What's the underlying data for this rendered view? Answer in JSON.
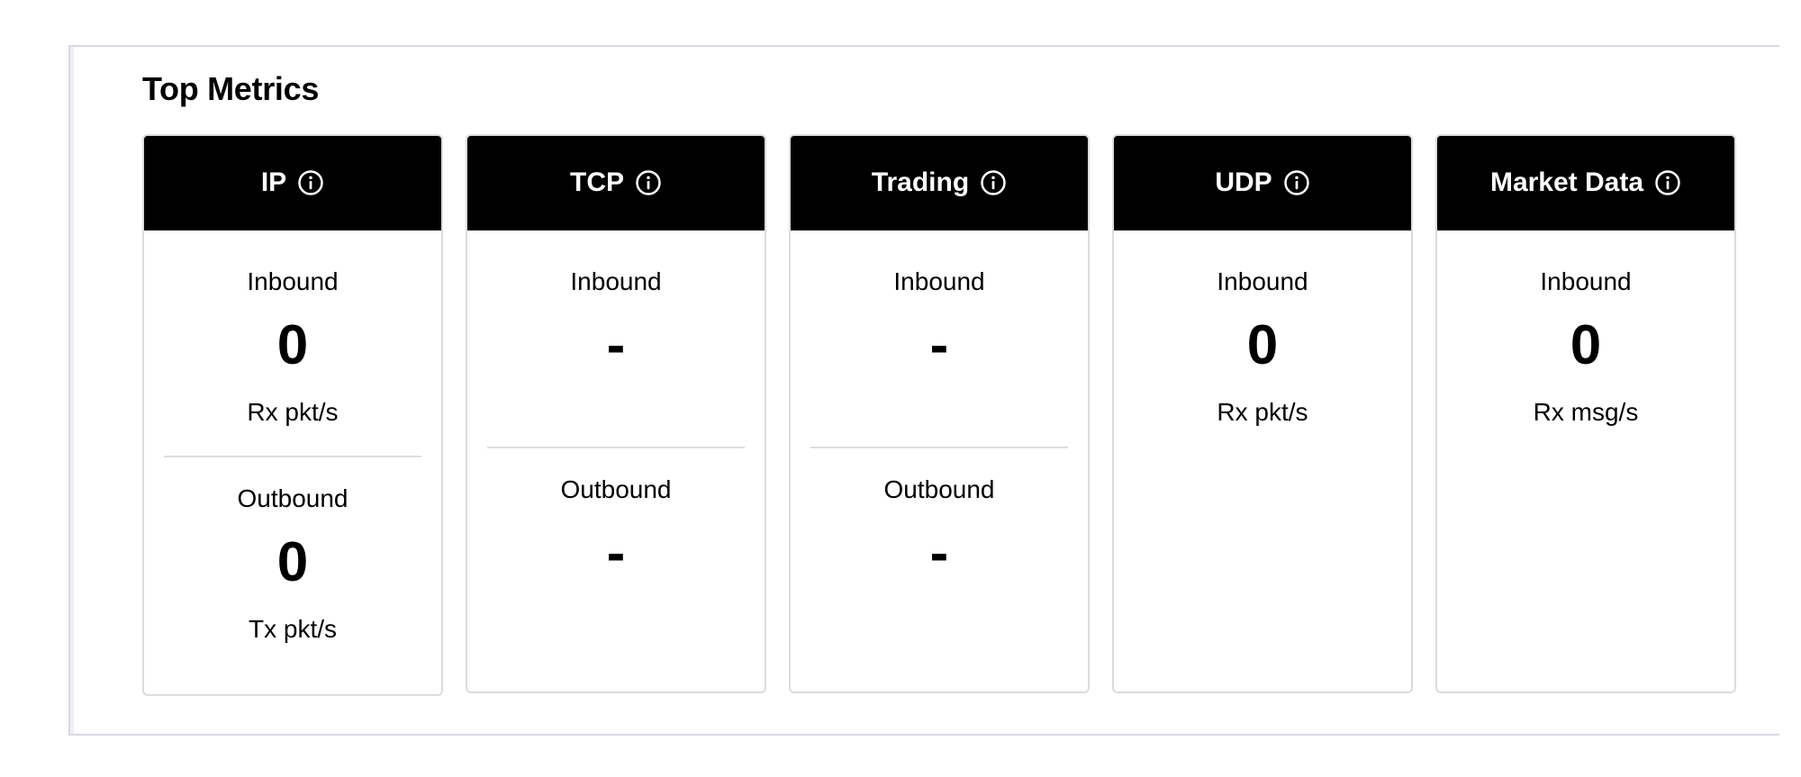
{
  "panel": {
    "title": "Top Metrics",
    "cards": [
      {
        "title": "IP",
        "icon": "info-icon",
        "inbound": {
          "label": "Inbound",
          "value": "0",
          "unit": "Rx pkt/s"
        },
        "outbound": {
          "label": "Outbound",
          "value": "0",
          "unit": "Tx pkt/s"
        }
      },
      {
        "title": "TCP",
        "icon": "info-icon",
        "inbound": {
          "label": "Inbound",
          "value": "-",
          "unit": ""
        },
        "outbound": {
          "label": "Outbound",
          "value": "-",
          "unit": ""
        }
      },
      {
        "title": "Trading",
        "icon": "info-icon",
        "inbound": {
          "label": "Inbound",
          "value": "-",
          "unit": ""
        },
        "outbound": {
          "label": "Outbound",
          "value": "-",
          "unit": ""
        }
      },
      {
        "title": "UDP",
        "icon": "info-icon",
        "inbound": {
          "label": "Inbound",
          "value": "0",
          "unit": "Rx pkt/s"
        }
      },
      {
        "title": "Market Data",
        "icon": "info-icon",
        "inbound": {
          "label": "Inbound",
          "value": "0",
          "unit": "Rx msg/s"
        }
      }
    ]
  },
  "colors": {
    "header_bg": "#000000",
    "header_text": "#ffffff",
    "border": "#dcdcdc"
  }
}
